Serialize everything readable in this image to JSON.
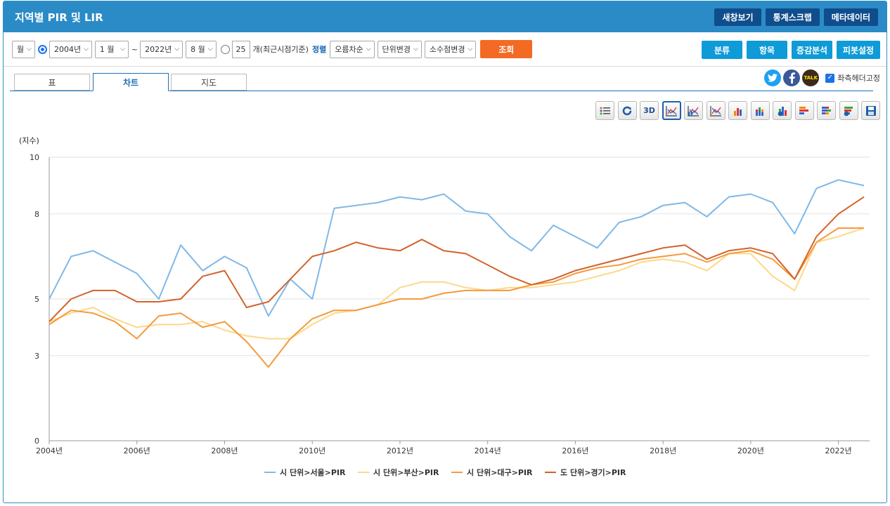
{
  "app": {
    "title": "지역별 PIR 및 LIR"
  },
  "title_buttons": [
    "새창보기",
    "통계스크랩",
    "메타데이터"
  ],
  "toolbar": {
    "period": "월",
    "start_year": "2004년",
    "start_month": "1 월",
    "tilde": "~",
    "end_year": "2022년",
    "end_month": "8 월",
    "count": "25",
    "count_label": "개(최근시점기준)",
    "sort_label": "정렬",
    "sort_value": "오름차순",
    "unit_change": "단위변경",
    "decimal_change": "소수점변경",
    "query_button": "조회",
    "right_buttons": [
      "분류",
      "항목",
      "증감분석",
      "피봇설정"
    ]
  },
  "tabs": [
    "표",
    "차트",
    "지도"
  ],
  "active_tab": "차트",
  "social": {
    "talk": "TALK",
    "fix_header": "좌측헤더고정"
  },
  "chart_icons": [
    "legend-list-icon",
    "refresh-icon",
    "3d-icon",
    "line-chart-icon",
    "line-chart-dollar-icon",
    "line-chart-alt-icon",
    "bar-chart-icon",
    "stacked-bar-icon",
    "bar-chart-settings-icon",
    "horizontal-bar-icon",
    "stacked-horizontal-bar-icon",
    "horizontal-bar-settings-icon",
    "save-icon"
  ],
  "chart_icon_3d_label": "3D",
  "chart_data": {
    "type": "line",
    "ylabel": "(지수)",
    "x_range": [
      "2004-01",
      "2022-08"
    ],
    "xticks": [
      "2004년",
      "2006년",
      "2008년",
      "2010년",
      "2012년",
      "2014년",
      "2016년",
      "2018년",
      "2020년",
      "2022년"
    ],
    "yticks": [
      "0",
      "3",
      "5",
      "8",
      "10"
    ],
    "grid": true,
    "legend_position": "bottom",
    "x": [
      "2004-01",
      "2004-07",
      "2005-01",
      "2005-07",
      "2006-01",
      "2006-07",
      "2007-01",
      "2007-07",
      "2008-01",
      "2008-07",
      "2009-01",
      "2009-07",
      "2010-01",
      "2010-07",
      "2011-01",
      "2011-07",
      "2012-01",
      "2012-07",
      "2013-01",
      "2013-07",
      "2014-01",
      "2014-07",
      "2015-01",
      "2015-07",
      "2016-01",
      "2016-07",
      "2017-01",
      "2017-07",
      "2018-01",
      "2018-07",
      "2019-01",
      "2019-07",
      "2020-01",
      "2020-07",
      "2021-01",
      "2021-07",
      "2022-01",
      "2022-08"
    ],
    "series": [
      {
        "name": "시 단위>서울>PIR",
        "color": "#7fb8e8",
        "values": [
          5.0,
          6.5,
          6.7,
          6.3,
          5.9,
          5.0,
          6.9,
          6.0,
          6.5,
          6.1,
          4.4,
          5.7,
          5.0,
          8.2,
          8.3,
          8.4,
          8.6,
          8.5,
          8.7,
          8.1,
          8.0,
          7.2,
          6.7,
          7.6,
          7.2,
          6.8,
          7.7,
          7.9,
          8.3,
          8.4,
          7.9,
          8.6,
          8.7,
          8.4,
          7.3,
          8.9,
          9.2,
          9.0
        ]
      },
      {
        "name": "시 단위>부산>PIR",
        "color": "#fdd88a",
        "values": [
          4.2,
          4.5,
          4.7,
          4.3,
          4.0,
          4.1,
          4.1,
          4.2,
          3.9,
          3.7,
          3.6,
          3.6,
          4.1,
          4.5,
          4.6,
          4.8,
          5.4,
          5.6,
          5.6,
          5.4,
          5.3,
          5.4,
          5.4,
          5.5,
          5.6,
          5.8,
          6.0,
          6.3,
          6.4,
          6.3,
          6.0,
          6.6,
          6.6,
          5.8,
          5.3,
          7.0,
          7.2,
          7.5
        ]
      },
      {
        "name": "시 단위>대구>PIR",
        "color": "#f49a3e",
        "values": [
          4.1,
          4.6,
          4.5,
          4.2,
          3.6,
          4.4,
          4.5,
          4.0,
          4.2,
          3.5,
          2.6,
          3.6,
          4.3,
          4.6,
          4.6,
          4.8,
          5.0,
          5.0,
          5.2,
          5.3,
          5.3,
          5.3,
          5.5,
          5.6,
          5.9,
          6.1,
          6.2,
          6.4,
          6.5,
          6.6,
          6.3,
          6.6,
          6.7,
          6.4,
          5.7,
          7.0,
          7.5,
          7.5
        ]
      },
      {
        "name": "도 단위>경기>PIR",
        "color": "#d2632c",
        "values": [
          4.2,
          5.0,
          5.3,
          5.3,
          4.9,
          4.9,
          5.0,
          5.8,
          6.0,
          4.7,
          4.9,
          5.7,
          6.5,
          6.7,
          7.0,
          6.8,
          6.7,
          7.1,
          6.7,
          6.6,
          6.2,
          5.8,
          5.5,
          5.7,
          6.0,
          6.2,
          6.4,
          6.6,
          6.8,
          6.9,
          6.4,
          6.7,
          6.8,
          6.6,
          5.7,
          7.2,
          8.0,
          8.6
        ]
      }
    ]
  }
}
